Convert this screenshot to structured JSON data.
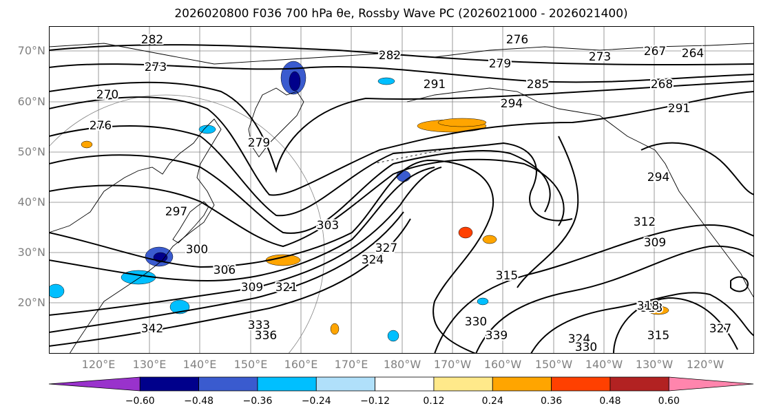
{
  "title_text": "2026020800 F036 700 hPa θe, Rossby Wave PC (2026021000 - 2026021400)",
  "lat_labels": [
    "70°N",
    "60°N",
    "50°N",
    "40°N",
    "30°N",
    "20°N"
  ],
  "lon_labels": [
    "120°E",
    "130°E",
    "140°E",
    "150°E",
    "160°E",
    "170°E",
    "180°W",
    "170°W",
    "160°W",
    "150°W",
    "140°W",
    "130°W",
    "120°W"
  ],
  "contour_labels": [
    "282",
    "273",
    "270",
    "276",
    "279",
    "282",
    "279",
    "291",
    "285",
    "294",
    "276",
    "273",
    "267",
    "264",
    "268",
    "291",
    "294",
    "297",
    "300",
    "306",
    "303",
    "309",
    "312",
    "315",
    "318",
    "321",
    "324",
    "327",
    "330",
    "333",
    "336",
    "339",
    "342",
    "309",
    "315",
    "318",
    "324",
    "327",
    "330"
  ],
  "colorbar": {
    "ticks": [
      "−0.60",
      "−0.48",
      "−0.36",
      "−0.24",
      "−0.12",
      "0.12",
      "0.24",
      "0.36",
      "0.48",
      "0.60"
    ],
    "colors": [
      "#9932cc",
      "#00008b",
      "#3a5bcf",
      "#00bfff",
      "#b0e0fa",
      "#ffffff",
      "#ffe98a",
      "#ffa500",
      "#ff4000",
      "#b22222",
      "#ff85ad"
    ]
  },
  "map": {
    "land_color": "#ffffff",
    "coast_color": "#000000",
    "grid_color": "#808080"
  }
}
